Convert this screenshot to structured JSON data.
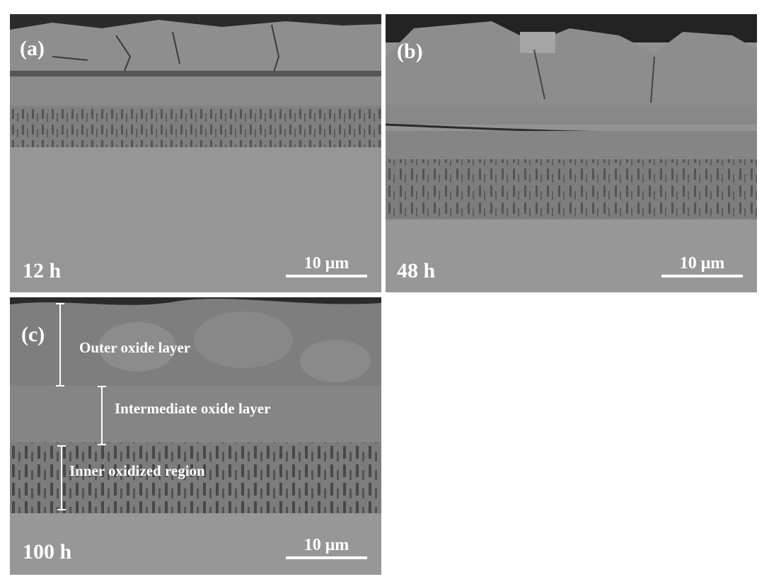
{
  "panels": [
    {
      "label": "(a)",
      "time": "12 h",
      "scale": "10 μm"
    },
    {
      "label": "(b)",
      "time": "48 h",
      "scale": "10 μm"
    },
    {
      "label": "(c)",
      "time": "100 h",
      "scale": "10 μm"
    }
  ],
  "annotations": {
    "outer": "Outer oxide layer",
    "intermediate": "Intermediate oxide layer",
    "inner": "Inner oxidized region"
  }
}
